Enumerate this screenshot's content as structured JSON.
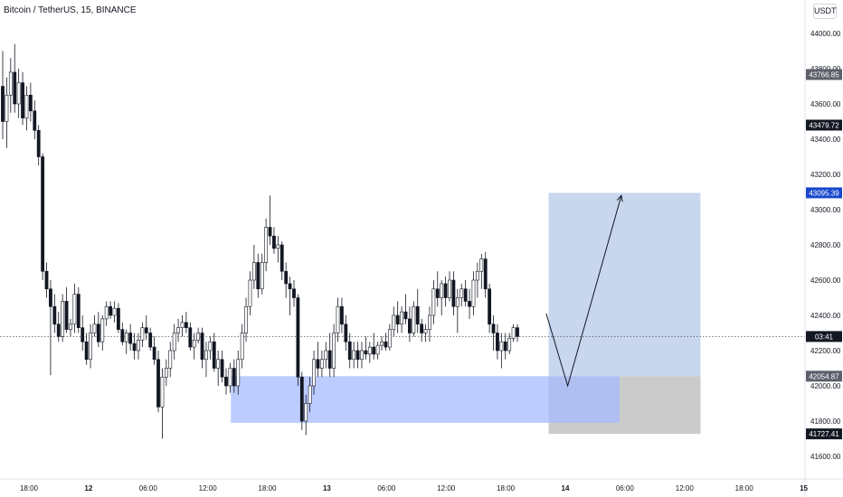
{
  "header": {
    "title": "Bitcoin / TetherUS, 15, BINANCE",
    "currency": "USDT"
  },
  "chart_data": {
    "type": "candlestick",
    "symbol": "Bitcoin / TetherUS",
    "interval": "15",
    "exchange": "BINANCE",
    "currency": "USDT",
    "y_range": [
      41500,
      44150
    ],
    "y_ticks": [
      "44000.00",
      "43800.00",
      "43600.00",
      "43400.00",
      "43200.00",
      "43000.00",
      "42800.00",
      "42600.00",
      "42400.00",
      "42200.00",
      "42000.00",
      "41800.00",
      "41600.00"
    ],
    "x_ticks": [
      "18:00",
      "12",
      "06:00",
      "12:00",
      "18:00",
      "13",
      "06:00",
      "12:00",
      "18:00",
      "14",
      "06:00",
      "12:00",
      "18:00",
      "15"
    ],
    "x_tick_days": [
      0.75,
      1.0,
      1.25,
      1.5,
      1.75,
      2.0,
      2.25,
      2.5,
      2.75,
      3.0,
      3.25,
      3.5,
      3.75,
      4.0
    ],
    "x_tick_bold": [
      false,
      true,
      false,
      false,
      false,
      true,
      false,
      false,
      false,
      true,
      false,
      false,
      false,
      true
    ],
    "price_labels": [
      {
        "text": "43766.85",
        "value": 43766.85,
        "bg": "#5d606b"
      },
      {
        "text": "43479.72",
        "value": 43479.72,
        "bg": "#131722"
      },
      {
        "text": "43095.39",
        "value": 43095.39,
        "bg": "#1848cc"
      },
      {
        "text": "03:41",
        "value": 42280,
        "bg": "#131722"
      },
      {
        "text": "42054.87",
        "value": 42054.87,
        "bg": "#5d606b"
      },
      {
        "text": "41727.41",
        "value": 41727.41,
        "bg": "#131722"
      }
    ],
    "current_price_line": 42280,
    "demand_zone": {
      "from_day": 1.597,
      "to_day": 3.227,
      "top": 42054.87,
      "bottom": 41790,
      "color": "#a6bbfd"
    },
    "position_box": {
      "from_day": 2.93,
      "to_day": 3.567,
      "entry": 42054.87,
      "target": 43095.39,
      "stop": 41727.41,
      "profit_color": "#c8d7ee",
      "loss_color": "#cbcbcb"
    },
    "projection_path": [
      {
        "day": 2.92,
        "price": 42410
      },
      {
        "day": 3.01,
        "price": 42000
      },
      {
        "day": 3.235,
        "price": 43080
      }
    ],
    "candles": [
      {
        "o": 43700,
        "h": 43900,
        "l": 43400,
        "c": 43500
      },
      {
        "o": 43500,
        "h": 43750,
        "l": 43350,
        "c": 43650
      },
      {
        "o": 43650,
        "h": 43860,
        "l": 43550,
        "c": 43780
      },
      {
        "o": 43780,
        "h": 43940,
        "l": 43550,
        "c": 43600
      },
      {
        "o": 43600,
        "h": 43800,
        "l": 43520,
        "c": 43720
      },
      {
        "o": 43720,
        "h": 43780,
        "l": 43480,
        "c": 43520
      },
      {
        "o": 43520,
        "h": 43700,
        "l": 43450,
        "c": 43650
      },
      {
        "o": 43650,
        "h": 43720,
        "l": 43500,
        "c": 43560
      },
      {
        "o": 43560,
        "h": 43620,
        "l": 43400,
        "c": 43450
      },
      {
        "o": 43450,
        "h": 43480,
        "l": 43250,
        "c": 43300
      },
      {
        "o": 43300,
        "h": 43320,
        "l": 42600,
        "c": 42650
      },
      {
        "o": 42650,
        "h": 42700,
        "l": 42500,
        "c": 42550
      },
      {
        "o": 42550,
        "h": 42600,
        "l": 42060,
        "c": 42450
      },
      {
        "o": 42450,
        "h": 42520,
        "l": 42300,
        "c": 42350
      },
      {
        "o": 42350,
        "h": 42420,
        "l": 42250,
        "c": 42280
      },
      {
        "o": 42280,
        "h": 42520,
        "l": 42250,
        "c": 42480
      },
      {
        "o": 42480,
        "h": 42560,
        "l": 42300,
        "c": 42320
      },
      {
        "o": 42320,
        "h": 42380,
        "l": 42280,
        "c": 42350
      },
      {
        "o": 42350,
        "h": 42580,
        "l": 42300,
        "c": 42520
      },
      {
        "o": 42520,
        "h": 42560,
        "l": 42300,
        "c": 42330
      },
      {
        "o": 42330,
        "h": 42400,
        "l": 42200,
        "c": 42250
      },
      {
        "o": 42250,
        "h": 42300,
        "l": 42120,
        "c": 42150
      },
      {
        "o": 42150,
        "h": 42350,
        "l": 42100,
        "c": 42300
      },
      {
        "o": 42300,
        "h": 42400,
        "l": 42280,
        "c": 42350
      },
      {
        "o": 42350,
        "h": 42420,
        "l": 42220,
        "c": 42250
      },
      {
        "o": 42250,
        "h": 42400,
        "l": 42200,
        "c": 42380
      },
      {
        "o": 42380,
        "h": 42480,
        "l": 42340,
        "c": 42450
      },
      {
        "o": 42450,
        "h": 42480,
        "l": 42380,
        "c": 42400
      },
      {
        "o": 42400,
        "h": 42480,
        "l": 42360,
        "c": 42440
      },
      {
        "o": 42440,
        "h": 42470,
        "l": 42300,
        "c": 42320
      },
      {
        "o": 42320,
        "h": 42360,
        "l": 42230,
        "c": 42250
      },
      {
        "o": 42250,
        "h": 42320,
        "l": 42180,
        "c": 42300
      },
      {
        "o": 42300,
        "h": 42350,
        "l": 42200,
        "c": 42240
      },
      {
        "o": 42240,
        "h": 42300,
        "l": 42150,
        "c": 42200
      },
      {
        "o": 42200,
        "h": 42300,
        "l": 42150,
        "c": 42260
      },
      {
        "o": 42260,
        "h": 42360,
        "l": 42220,
        "c": 42330
      },
      {
        "o": 42330,
        "h": 42400,
        "l": 42260,
        "c": 42300
      },
      {
        "o": 42300,
        "h": 42330,
        "l": 42200,
        "c": 42220
      },
      {
        "o": 42220,
        "h": 42280,
        "l": 42120,
        "c": 42150
      },
      {
        "o": 42150,
        "h": 42200,
        "l": 41850,
        "c": 41880
      },
      {
        "o": 41880,
        "h": 42100,
        "l": 41700,
        "c": 42050
      },
      {
        "o": 42050,
        "h": 42150,
        "l": 42000,
        "c": 42100
      },
      {
        "o": 42100,
        "h": 42250,
        "l": 42050,
        "c": 42200
      },
      {
        "o": 42200,
        "h": 42350,
        "l": 42150,
        "c": 42300
      },
      {
        "o": 42300,
        "h": 42380,
        "l": 42250,
        "c": 42330
      },
      {
        "o": 42330,
        "h": 42400,
        "l": 42280,
        "c": 42360
      },
      {
        "o": 42360,
        "h": 42420,
        "l": 42300,
        "c": 42330
      },
      {
        "o": 42330,
        "h": 42360,
        "l": 42200,
        "c": 42220
      },
      {
        "o": 42220,
        "h": 42300,
        "l": 42150,
        "c": 42260
      },
      {
        "o": 42260,
        "h": 42330,
        "l": 42240,
        "c": 42300
      },
      {
        "o": 42300,
        "h": 42330,
        "l": 42100,
        "c": 42150
      },
      {
        "o": 42150,
        "h": 42250,
        "l": 42050,
        "c": 42200
      },
      {
        "o": 42200,
        "h": 42280,
        "l": 42150,
        "c": 42250
      },
      {
        "o": 42250,
        "h": 42300,
        "l": 42080,
        "c": 42100
      },
      {
        "o": 42100,
        "h": 42200,
        "l": 42000,
        "c": 42150
      },
      {
        "o": 42150,
        "h": 42200,
        "l": 42020,
        "c": 42050
      },
      {
        "o": 42050,
        "h": 42100,
        "l": 41950,
        "c": 42000
      },
      {
        "o": 42000,
        "h": 42130,
        "l": 41960,
        "c": 42100
      },
      {
        "o": 42100,
        "h": 42150,
        "l": 41960,
        "c": 42000
      },
      {
        "o": 42000,
        "h": 42200,
        "l": 41950,
        "c": 42150
      },
      {
        "o": 42150,
        "h": 42350,
        "l": 42100,
        "c": 42300
      },
      {
        "o": 42300,
        "h": 42500,
        "l": 42250,
        "c": 42450
      },
      {
        "o": 42450,
        "h": 42650,
        "l": 42400,
        "c": 42600
      },
      {
        "o": 42600,
        "h": 42800,
        "l": 42550,
        "c": 42700
      },
      {
        "o": 42700,
        "h": 42750,
        "l": 42500,
        "c": 42550
      },
      {
        "o": 42550,
        "h": 42750,
        "l": 42520,
        "c": 42700
      },
      {
        "o": 42700,
        "h": 42950,
        "l": 42650,
        "c": 42900
      },
      {
        "o": 42900,
        "h": 43080,
        "l": 42800,
        "c": 42850
      },
      {
        "o": 42850,
        "h": 42900,
        "l": 42750,
        "c": 42780
      },
      {
        "o": 42780,
        "h": 42850,
        "l": 42700,
        "c": 42800
      },
      {
        "o": 42800,
        "h": 42820,
        "l": 42600,
        "c": 42650
      },
      {
        "o": 42650,
        "h": 42700,
        "l": 42500,
        "c": 42580
      },
      {
        "o": 42580,
        "h": 42620,
        "l": 42400,
        "c": 42550
      },
      {
        "o": 42550,
        "h": 42600,
        "l": 42450,
        "c": 42500
      },
      {
        "o": 42500,
        "h": 42520,
        "l": 42000,
        "c": 42050
      },
      {
        "o": 42050,
        "h": 42080,
        "l": 41750,
        "c": 41800
      },
      {
        "o": 41800,
        "h": 41950,
        "l": 41720,
        "c": 41900
      },
      {
        "o": 41900,
        "h": 42050,
        "l": 41850,
        "c": 42000
      },
      {
        "o": 42000,
        "h": 42200,
        "l": 41950,
        "c": 42150
      },
      {
        "o": 42150,
        "h": 42250,
        "l": 42050,
        "c": 42100
      },
      {
        "o": 42100,
        "h": 42200,
        "l": 42050,
        "c": 42150
      },
      {
        "o": 42150,
        "h": 42250,
        "l": 42100,
        "c": 42200
      },
      {
        "o": 42200,
        "h": 42300,
        "l": 42050,
        "c": 42100
      },
      {
        "o": 42100,
        "h": 42350,
        "l": 42050,
        "c": 42300
      },
      {
        "o": 42300,
        "h": 42500,
        "l": 42250,
        "c": 42450
      },
      {
        "o": 42450,
        "h": 42500,
        "l": 42300,
        "c": 42350
      },
      {
        "o": 42350,
        "h": 42400,
        "l": 42200,
        "c": 42250
      },
      {
        "o": 42250,
        "h": 42300,
        "l": 42100,
        "c": 42150
      },
      {
        "o": 42150,
        "h": 42250,
        "l": 42100,
        "c": 42200
      },
      {
        "o": 42200,
        "h": 42250,
        "l": 42100,
        "c": 42150
      },
      {
        "o": 42150,
        "h": 42250,
        "l": 42100,
        "c": 42200
      },
      {
        "o": 42200,
        "h": 42280,
        "l": 42150,
        "c": 42180
      },
      {
        "o": 42180,
        "h": 42250,
        "l": 42130,
        "c": 42220
      },
      {
        "o": 42220,
        "h": 42300,
        "l": 42150,
        "c": 42180
      },
      {
        "o": 42180,
        "h": 42250,
        "l": 42150,
        "c": 42230
      },
      {
        "o": 42230,
        "h": 42280,
        "l": 42200,
        "c": 42250
      },
      {
        "o": 42250,
        "h": 42300,
        "l": 42200,
        "c": 42220
      },
      {
        "o": 42220,
        "h": 42350,
        "l": 42200,
        "c": 42320
      },
      {
        "o": 42320,
        "h": 42450,
        "l": 42280,
        "c": 42400
      },
      {
        "o": 42400,
        "h": 42480,
        "l": 42300,
        "c": 42350
      },
      {
        "o": 42350,
        "h": 42450,
        "l": 42300,
        "c": 42420
      },
      {
        "o": 42420,
        "h": 42520,
        "l": 42350,
        "c": 42380
      },
      {
        "o": 42380,
        "h": 42450,
        "l": 42250,
        "c": 42300
      },
      {
        "o": 42300,
        "h": 42480,
        "l": 42280,
        "c": 42450
      },
      {
        "o": 42450,
        "h": 42550,
        "l": 42300,
        "c": 42350
      },
      {
        "o": 42350,
        "h": 42380,
        "l": 42250,
        "c": 42300
      },
      {
        "o": 42300,
        "h": 42350,
        "l": 42250,
        "c": 42320
      },
      {
        "o": 42320,
        "h": 42450,
        "l": 42250,
        "c": 42400
      },
      {
        "o": 42400,
        "h": 42600,
        "l": 42350,
        "c": 42550
      },
      {
        "o": 42550,
        "h": 42650,
        "l": 42450,
        "c": 42500
      },
      {
        "o": 42500,
        "h": 42600,
        "l": 42400,
        "c": 42580
      },
      {
        "o": 42580,
        "h": 42620,
        "l": 42450,
        "c": 42500
      },
      {
        "o": 42500,
        "h": 42650,
        "l": 42480,
        "c": 42600
      },
      {
        "o": 42600,
        "h": 42650,
        "l": 42400,
        "c": 42450
      },
      {
        "o": 42450,
        "h": 42550,
        "l": 42300,
        "c": 42500
      },
      {
        "o": 42500,
        "h": 42580,
        "l": 42450,
        "c": 42550
      },
      {
        "o": 42550,
        "h": 42600,
        "l": 42450,
        "c": 42480
      },
      {
        "o": 42480,
        "h": 42550,
        "l": 42380,
        "c": 42450
      },
      {
        "o": 42450,
        "h": 42650,
        "l": 42400,
        "c": 42600
      },
      {
        "o": 42600,
        "h": 42700,
        "l": 42500,
        "c": 42650
      },
      {
        "o": 42650,
        "h": 42750,
        "l": 42550,
        "c": 42720
      },
      {
        "o": 42720,
        "h": 42760,
        "l": 42500,
        "c": 42550
      },
      {
        "o": 42550,
        "h": 42580,
        "l": 42300,
        "c": 42350
      },
      {
        "o": 42350,
        "h": 42400,
        "l": 42200,
        "c": 42300
      },
      {
        "o": 42300,
        "h": 42350,
        "l": 42150,
        "c": 42200
      },
      {
        "o": 42200,
        "h": 42300,
        "l": 42100,
        "c": 42250
      },
      {
        "o": 42250,
        "h": 42300,
        "l": 42150,
        "c": 42200
      },
      {
        "o": 42200,
        "h": 42300,
        "l": 42180,
        "c": 42270
      },
      {
        "o": 42270,
        "h": 42350,
        "l": 42250,
        "c": 42330
      },
      {
        "o": 42330,
        "h": 42350,
        "l": 42250,
        "c": 42280
      }
    ]
  }
}
